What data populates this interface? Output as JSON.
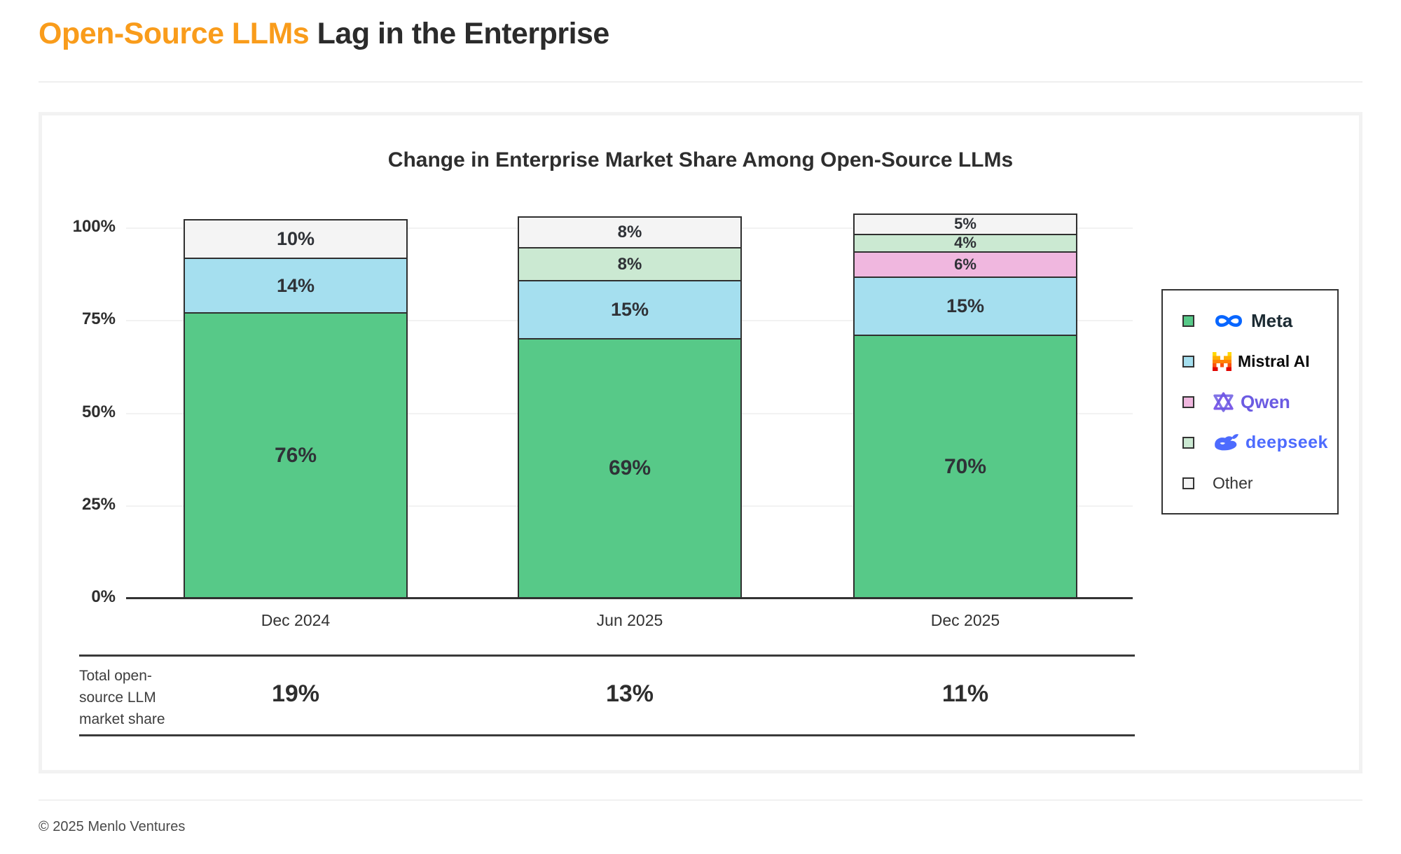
{
  "header": {
    "title_highlight": "Open-Source LLMs",
    "title_rest": " Lag in the Enterprise"
  },
  "footer": {
    "credit": "© 2025 Menlo Ventures"
  },
  "chart_data": {
    "type": "bar",
    "stacked": true,
    "title": "Change in Enterprise Market Share Among Open-Source LLMs",
    "categories": [
      "Dec 2024",
      "Jun 2025",
      "Dec 2025"
    ],
    "series": [
      {
        "name": "Meta",
        "color": "#57C988",
        "values": [
          76,
          69,
          70
        ]
      },
      {
        "name": "Mistral AI",
        "color": "#A5DFEF",
        "values": [
          14,
          15,
          15
        ]
      },
      {
        "name": "Qwen",
        "color": "#F0B7DF",
        "values": [
          0,
          0,
          6
        ]
      },
      {
        "name": "deepseek",
        "color": "#CBE9D2",
        "values": [
          0,
          8,
          4
        ]
      },
      {
        "name": "Other",
        "color": "#F4F4F4",
        "values": [
          10,
          8,
          5
        ]
      }
    ],
    "y_ticks": [
      "100%",
      "75%",
      "50%",
      "25%",
      "0%"
    ],
    "ylim": [
      0,
      100
    ],
    "grid": true,
    "legend_position": "right",
    "unit": "%",
    "totals_row": {
      "label": "Total open-source LLM market share",
      "label_lines": [
        "Total open-",
        "source LLM",
        "market share"
      ],
      "values": [
        "19%",
        "13%",
        "11%"
      ]
    }
  },
  "colors": {
    "accent_orange": "#F99C1B",
    "text_dark": "#2E2E2E",
    "bar_border": "#2F2F2F",
    "gridline": "#F2F2F2",
    "meta_blue": "#0866FF",
    "qwen_purple": "#6B5BE2",
    "deepseek_blue": "#4D6BFE"
  }
}
